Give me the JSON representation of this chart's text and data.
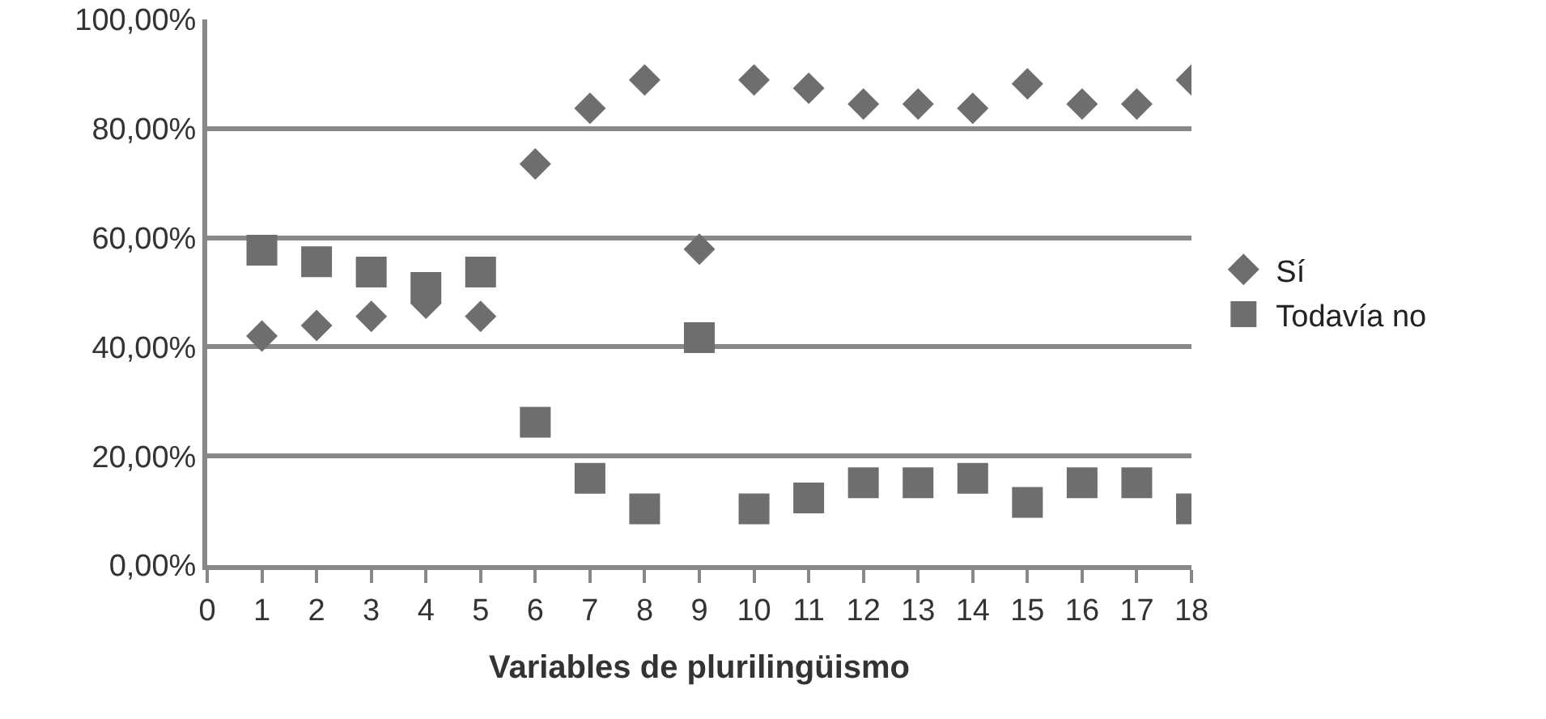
{
  "chart_data": {
    "type": "scatter",
    "xlabel": "Variables de plurilingüismo",
    "x": [
      1,
      2,
      3,
      4,
      5,
      6,
      7,
      8,
      9,
      10,
      11,
      12,
      13,
      14,
      15,
      16,
      17,
      18
    ],
    "series": [
      {
        "name": "Sí",
        "color": "#6e6e6e",
        "marker": "diamond",
        "values": [
          42.0,
          43.9,
          45.6,
          48,
          45.6,
          73.5,
          83.7,
          88.9,
          57.9,
          88.9,
          87.4,
          84.5,
          84.5,
          83.7,
          88.2,
          84.5,
          84.5,
          88.9
        ]
      },
      {
        "name": "Todavía no",
        "color": "#6e6e6e",
        "marker": "square",
        "values": [
          57.7,
          55.6,
          53.7,
          50.9,
          53.7,
          26.2,
          15.9,
          10.3,
          41.7,
          10.3,
          12.3,
          15.1,
          15.1,
          15.9,
          11.5,
          15.1,
          15.1,
          10.3
        ]
      }
    ],
    "xlim": [
      0,
      18
    ],
    "xticks": [
      0,
      1,
      2,
      3,
      4,
      5,
      6,
      7,
      8,
      9,
      10,
      11,
      12,
      13,
      14,
      15,
      16,
      17,
      18
    ],
    "ylim": [
      0,
      100
    ],
    "yticks": [
      {
        "value": 0,
        "label": "0,00%"
      },
      {
        "value": 20,
        "label": "20,00%"
      },
      {
        "value": 40,
        "label": "40,00%"
      },
      {
        "value": 60,
        "label": "60,00%"
      },
      {
        "value": 80,
        "label": "80,00%"
      },
      {
        "value": 100,
        "label": "100,00%"
      }
    ],
    "grid": "y",
    "legend": "right"
  }
}
